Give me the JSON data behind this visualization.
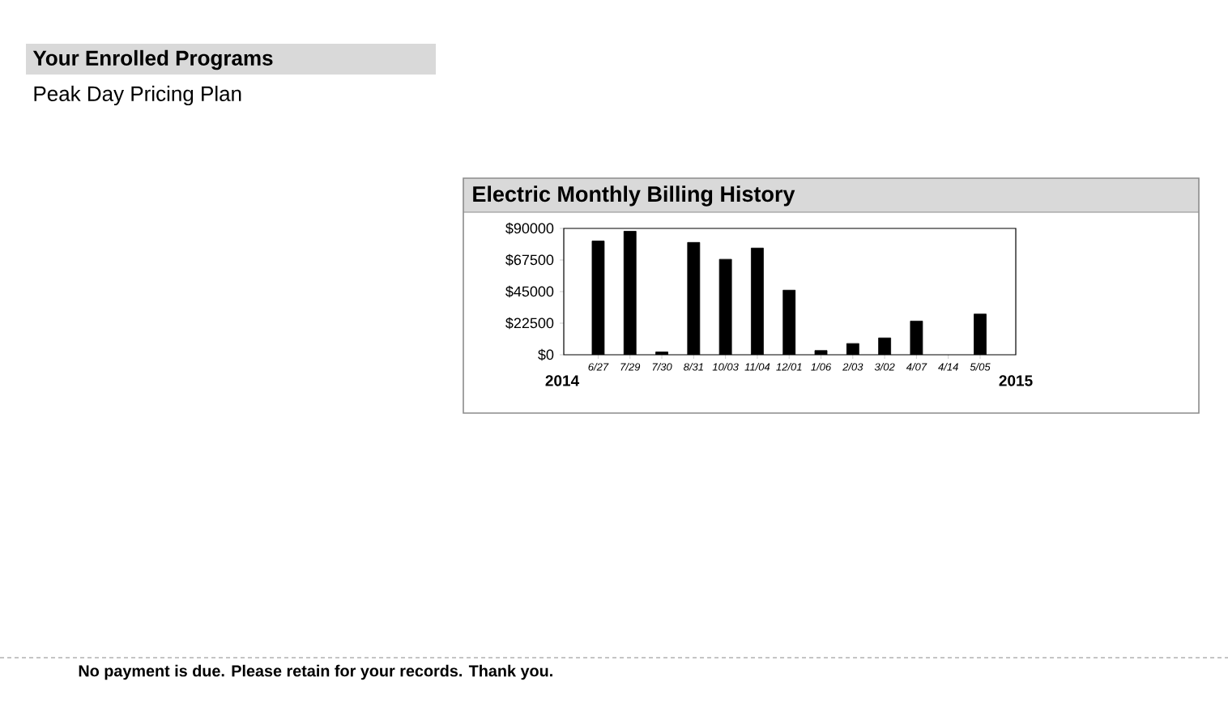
{
  "chart_data": {
    "type": "bar",
    "title": "Electric Monthly Billing History",
    "categories": [
      "6/27",
      "7/29",
      "7/30",
      "8/31",
      "10/03",
      "11/04",
      "12/01",
      "1/06",
      "2/03",
      "3/02",
      "4/07",
      "4/14",
      "5/05"
    ],
    "values": [
      81000,
      88000,
      2000,
      80000,
      68000,
      76000,
      46000,
      3000,
      8000,
      12000,
      24000,
      null,
      29000
    ],
    "color": "#000000",
    "ylim": [
      0,
      90000
    ],
    "yticks": [
      {
        "value": 0,
        "label": "$0"
      },
      {
        "value": 22500,
        "label": "$22500"
      },
      {
        "value": 45000,
        "label": "$45000"
      },
      {
        "value": 67500,
        "label": "$67500"
      },
      {
        "value": 90000,
        "label": "$90000"
      }
    ],
    "annotations": [
      "2014",
      "2015",
      "Your Enrolled Programs",
      "Peak Day Pricing Plan",
      "No payment is due. Please retain for your records. Thank you."
    ]
  }
}
